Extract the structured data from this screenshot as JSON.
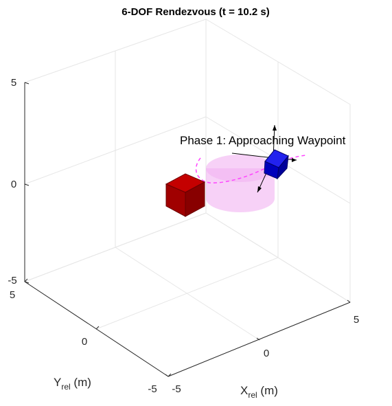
{
  "chart_data": {
    "type": "3d-scene",
    "title": "6-DOF Rendezvous (t = 10.2 s)",
    "axes": {
      "x": {
        "label_main": "X",
        "label_sub": "rel",
        "label_unit": " (m)",
        "lim": [
          -5,
          5
        ],
        "ticks": [
          -5,
          0,
          5
        ],
        "tick_labels": [
          "-5",
          "0",
          "5"
        ]
      },
      "y": {
        "label_main": "Y",
        "label_sub": "rel",
        "label_unit": " (m)",
        "lim": [
          -5,
          5
        ],
        "ticks": [
          -5,
          0,
          5
        ],
        "tick_labels": [
          "-5",
          "0",
          "5"
        ]
      },
      "z": {
        "lim": [
          -5,
          5
        ],
        "ticks": [
          -5,
          0,
          5
        ],
        "tick_labels": [
          "-5",
          "0",
          "5"
        ]
      }
    },
    "grid": true,
    "annotation": "Phase 1: Approaching Waypoint",
    "objects": [
      {
        "name": "target",
        "shape": "cube",
        "color": "#b00000"
      },
      {
        "name": "keep-out-zone",
        "shape": "cylinder",
        "color": "#ee99ee"
      },
      {
        "name": "chaser",
        "shape": "cube",
        "color": "#0000cc"
      },
      {
        "name": "trajectory",
        "shape": "dashed-curve",
        "color": "#ff44ff"
      },
      {
        "name": "body-frame-axes",
        "shape": "arrows",
        "color": "#000000"
      }
    ]
  }
}
